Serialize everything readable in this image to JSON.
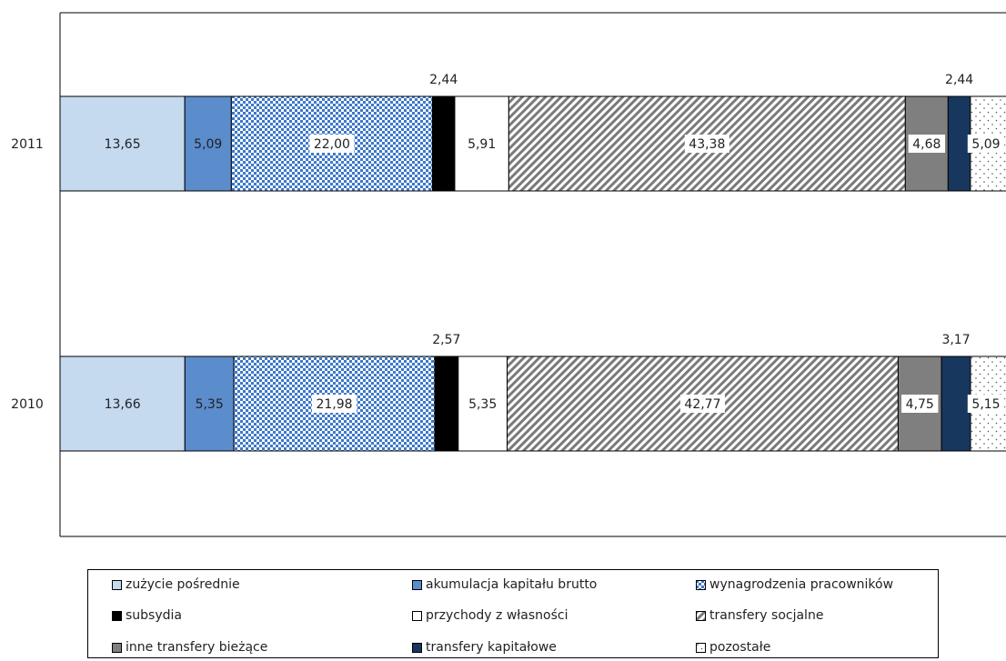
{
  "chart_data": {
    "type": "bar",
    "orientation": "horizontal",
    "stacked": true,
    "categories": [
      "2011",
      "2010"
    ],
    "xlim": [
      0,
      100
    ],
    "grid": false,
    "legend_position": "bottom",
    "series": [
      {
        "name": "zużycie pośrednie",
        "values": [
          13.65,
          13.66
        ],
        "labels": [
          "13,65",
          "13,66"
        ],
        "color": "#c5d9ef",
        "pattern": "solid"
      },
      {
        "name": "akumulacja kapitału brutto",
        "values": [
          5.09,
          5.35
        ],
        "labels": [
          "5,09",
          "5,35"
        ],
        "color": "#5b8ccc",
        "pattern": "solid"
      },
      {
        "name": "wynagrodzenia pracowników",
        "values": [
          22.0,
          21.98
        ],
        "labels": [
          "22,00",
          "21,98"
        ],
        "color": "#3d78c9",
        "pattern": "checker"
      },
      {
        "name": "subsydia",
        "values": [
          2.44,
          2.57
        ],
        "labels": [
          "2,44",
          "2,57"
        ],
        "color": "#000000",
        "pattern": "solid"
      },
      {
        "name": "przychody z własności",
        "values": [
          5.91,
          5.35
        ],
        "labels": [
          "5,91",
          "5,35"
        ],
        "color": "#ffffff",
        "pattern": "solid"
      },
      {
        "name": "transfery socjalne",
        "values": [
          43.38,
          42.77
        ],
        "labels": [
          "43,38",
          "42,77"
        ],
        "color": "#7a7a7a",
        "pattern": "diagonal"
      },
      {
        "name": "inne transfery bieżące",
        "values": [
          4.68,
          4.75
        ],
        "labels": [
          "4,68",
          "4,75"
        ],
        "color": "#7f7f7f",
        "pattern": "solid"
      },
      {
        "name": "transfery kapitałowe",
        "values": [
          2.44,
          3.17
        ],
        "labels": [
          "2,44",
          "3,17"
        ],
        "color": "#17375e",
        "pattern": "solid"
      },
      {
        "name": "pozostałe",
        "values": [
          5.09,
          5.15
        ],
        "labels": [
          "5,09",
          "5,15"
        ],
        "color": "#ffffff",
        "pattern": "dots"
      }
    ]
  }
}
